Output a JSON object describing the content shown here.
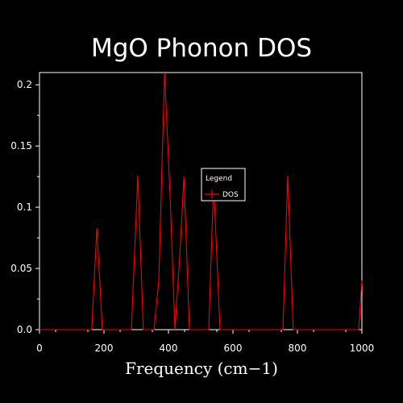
{
  "colors": {
    "background": "#000000",
    "axis": "#ffffff",
    "series": "#ff0000"
  },
  "chart_data": {
    "type": "line",
    "title": "MgO Phonon DOS",
    "xlabel": "Frequency (cm−1)",
    "ylabel": "",
    "xlim": [
      0,
      1000
    ],
    "ylim": [
      0,
      0.21
    ],
    "xticks": [
      0,
      200,
      400,
      600,
      800,
      1000
    ],
    "xtick_labels": [
      "0",
      "200",
      "400",
      "600",
      "800",
      "1000"
    ],
    "yticks": [
      0,
      0.05,
      0.1,
      0.15,
      0.2
    ],
    "ytick_labels": [
      "0.0",
      "0.05",
      "0.1",
      "0.15",
      "0.2"
    ],
    "grid": false,
    "legend": {
      "title": "Legend",
      "placement": "center-right",
      "entries": [
        "DOS"
      ]
    },
    "series": [
      {
        "name": "DOS",
        "x": [
          0,
          162,
          178,
          195,
          285,
          305,
          322,
          355,
          370,
          388,
          405,
          420,
          435,
          448,
          465,
          525,
          540,
          560,
          755,
          770,
          787,
          990,
          1000
        ],
        "y": [
          0,
          0,
          0.083,
          0,
          0,
          0.126,
          0,
          0,
          0.04,
          0.21,
          0.11,
          0,
          0.06,
          0.125,
          0,
          0,
          0.12,
          0,
          0,
          0.126,
          0,
          0,
          0.04
        ]
      }
    ]
  }
}
